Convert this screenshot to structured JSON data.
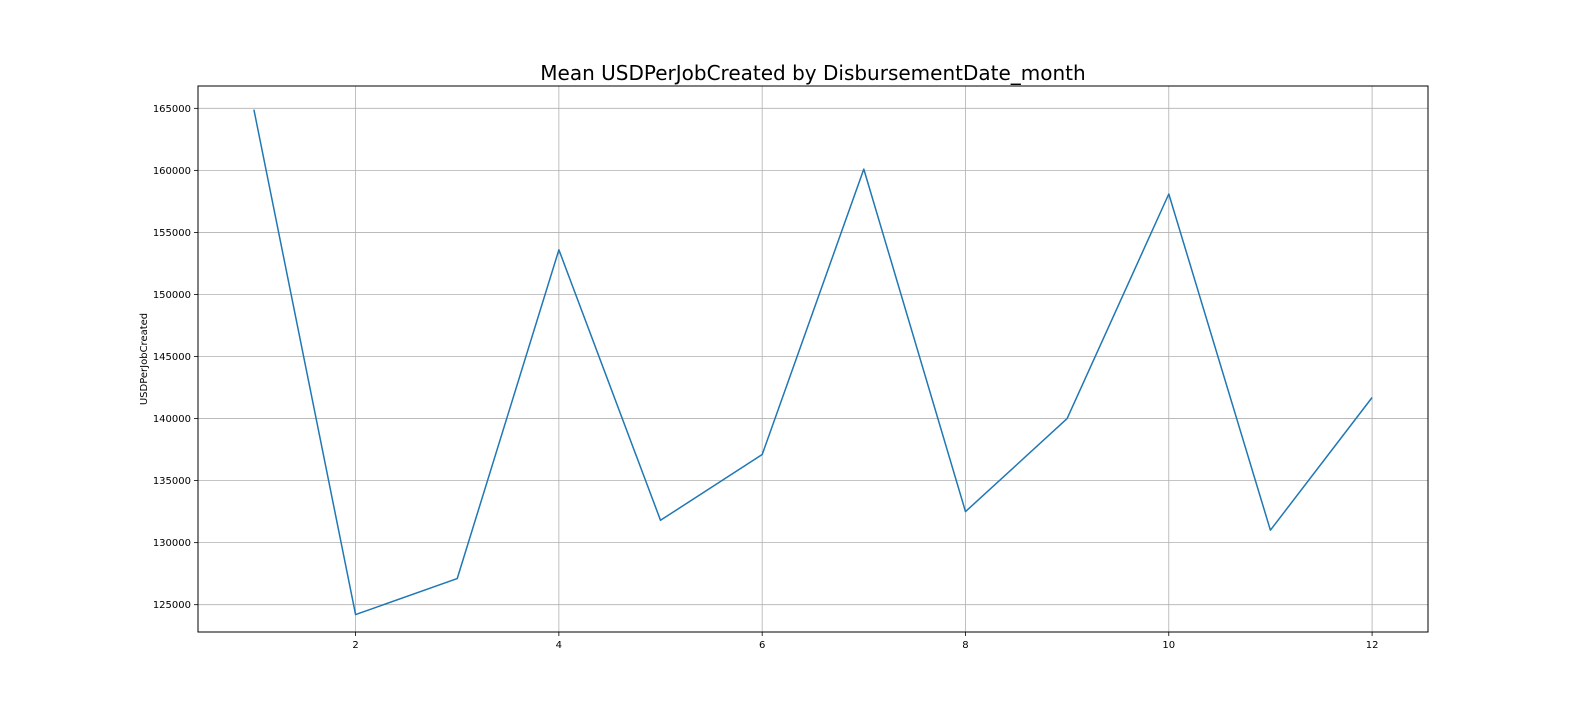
{
  "chart_data": {
    "type": "line",
    "title": "Mean USDPerJobCreated by DisbursementDate_month",
    "xlabel": "",
    "ylabel": "USDPerJobCreated",
    "x": [
      1,
      2,
      3,
      4,
      5,
      6,
      7,
      8,
      9,
      10,
      11,
      12
    ],
    "series": [
      {
        "values": [
          164900,
          124200,
          127100,
          153600,
          131800,
          137100,
          160100,
          132500,
          140000,
          158100,
          131000,
          141700
        ]
      }
    ],
    "xlim": [
      0.45,
      12.55
    ],
    "ylim": [
      122800,
      166800
    ],
    "xticks": [
      2,
      4,
      6,
      8,
      10,
      12
    ],
    "xtick_labels": [
      "2",
      "4",
      "6",
      "8",
      "10",
      "12"
    ],
    "yticks": [
      125000,
      130000,
      135000,
      140000,
      145000,
      150000,
      155000,
      160000,
      165000
    ],
    "ytick_labels": [
      "125000",
      "130000",
      "135000",
      "140000",
      "145000",
      "150000",
      "155000",
      "160000",
      "165000"
    ],
    "grid": true,
    "legend": false,
    "colors": {
      "line": "#1f77b4",
      "grid": "#b0b0b0",
      "axes": "#000000",
      "background": "#ffffff"
    }
  }
}
